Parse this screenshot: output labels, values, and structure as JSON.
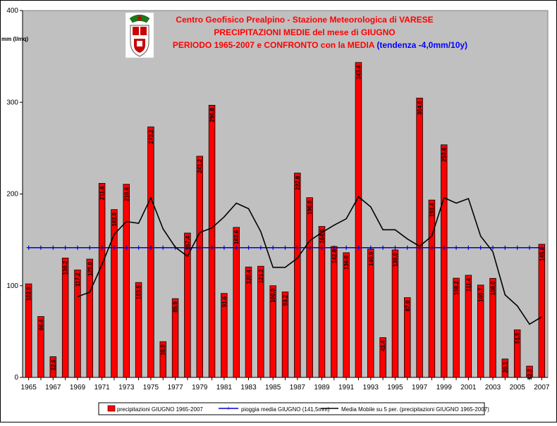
{
  "chart_data": {
    "type": "bar",
    "title_lines": [
      "Centro Geofisico Prealpino - Stazione Meteorologica di VARESE",
      "PRECIPITAZIONI MEDIE del mese di GIUGNO",
      "PERIODO 1965-2007 e CONFRONTO con la MEDIA"
    ],
    "trend_note": "(tendenza -4,0mm/10y)",
    "ylabel": "mm (l/mq)",
    "ylim": [
      0,
      400
    ],
    "yticks": [
      0,
      100,
      200,
      300,
      400
    ],
    "xtick_labels": [
      "1965",
      "1967",
      "1969",
      "1971",
      "1973",
      "1975",
      "1977",
      "1979",
      "1981",
      "1983",
      "1985",
      "1987",
      "1989",
      "1991",
      "1993",
      "1995",
      "1997",
      "1999",
      "2001",
      "2003",
      "2005",
      "2007"
    ],
    "categories": [
      "1965",
      "1966",
      "1967",
      "1968",
      "1969",
      "1970",
      "1971",
      "1972",
      "1973",
      "1974",
      "1975",
      "1976",
      "1977",
      "1978",
      "1979",
      "1980",
      "1981",
      "1982",
      "1983",
      "1984",
      "1985",
      "1986",
      "1987",
      "1988",
      "1989",
      "1990",
      "1991",
      "1992",
      "1993",
      "1994",
      "1995",
      "1996",
      "1997",
      "1998",
      "1999",
      "2000",
      "2001",
      "2002",
      "2003",
      "2004",
      "2005",
      "2006",
      "2007"
    ],
    "series": [
      {
        "name": "precipitazioni GIUGNO 1965-2007",
        "kind": "bar",
        "color": "#ff0000",
        "values": [
          102.0,
          66.4,
          22.6,
          130.2,
          117.2,
          129.0,
          211.6,
          183.0,
          210.6,
          103.5,
          273.2,
          39.0,
          85.9,
          157.4,
          241.2,
          296.8,
          91.6,
          163.6,
          120.4,
          121.2,
          100.0,
          93.2,
          222.8,
          196.0,
          164.6,
          142.8,
          136.0,
          343.4,
          140.0,
          43.4,
          139.0,
          87.0,
          304.6,
          193.4,
          253.6,
          108.2,
          111.4,
          100.7,
          108.0,
          20.1,
          51.9,
          12.3,
          145.2
        ],
        "labels": [
          "102.0",
          "66.4",
          "22.6",
          "130.2",
          "117.2",
          "129.0",
          "211.6",
          "183.0",
          "210.6",
          "103.5",
          "273.2",
          "39.0",
          "85.9",
          "157.4",
          "241.2",
          "296.8",
          "91.6",
          "163.6",
          "120.4",
          "121.2",
          "100.0",
          "93.2",
          "222.8",
          "196.0",
          "164.6",
          "142.8",
          "136.0",
          "343.4",
          "140.0",
          "43.4",
          "139.0",
          "87.0",
          "304.6",
          "193.4",
          "253.6",
          "108.2",
          "111.4",
          "100.7",
          "108.0",
          "20.1",
          "51.9",
          "12.3",
          "145.2"
        ]
      },
      {
        "name": "pioggia media GIUGNO (141,5mm)",
        "kind": "line",
        "color": "#0000cc",
        "values": [
          141.5,
          141.5,
          141.5,
          141.5,
          141.5,
          141.5,
          141.5,
          141.5,
          141.5,
          141.5,
          141.5,
          141.5,
          141.5,
          141.5,
          141.5,
          141.5,
          141.5,
          141.5,
          141.5,
          141.5,
          141.5,
          141.5,
          141.5,
          141.5,
          141.5,
          141.5,
          141.5,
          141.5,
          141.5,
          141.5,
          141.5,
          141.5,
          141.5,
          141.5,
          141.5,
          141.5,
          141.5,
          141.5,
          141.5,
          141.5,
          141.5,
          141.5,
          141.5
        ]
      },
      {
        "name": "Media Mobile su 5 per. (precipitazioni GIUGNO 1965-2007)",
        "kind": "line",
        "color": "#000000",
        "values": [
          null,
          null,
          null,
          null,
          88,
          93,
          123,
          156,
          170,
          168,
          196,
          162,
          142,
          132,
          158,
          163,
          175,
          190,
          184,
          159,
          120,
          120,
          130,
          149,
          158,
          166,
          173,
          197,
          186,
          161,
          161,
          151,
          143,
          154,
          196,
          190,
          195,
          154,
          137,
          90,
          78,
          58,
          66
        ]
      }
    ],
    "legend_position": "bottom",
    "grid": false,
    "colors": {
      "plot_bg": "#c0c0c0",
      "title_red": "#ff0000",
      "trend_blue": "#0000ff"
    }
  },
  "logo": {
    "icon": "coat-of-arms-icon"
  }
}
